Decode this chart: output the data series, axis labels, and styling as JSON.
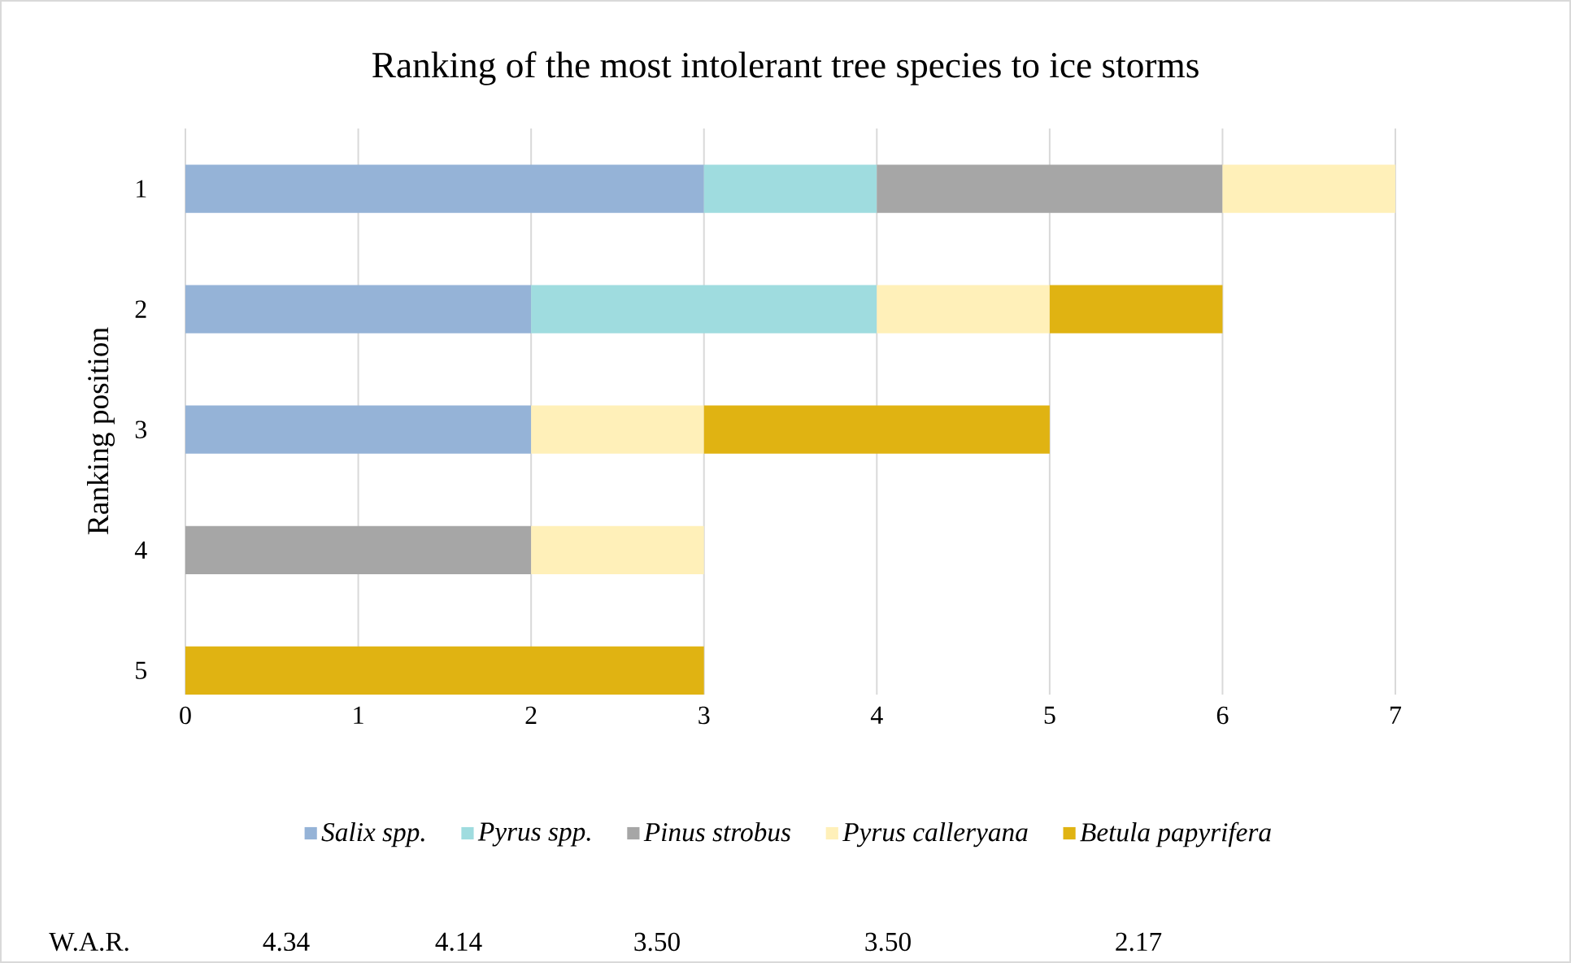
{
  "chart_data": {
    "type": "bar",
    "orientation": "horizontal",
    "stacked": true,
    "title": "Ranking of the most intolerant tree species to ice storms",
    "ylabel": "Ranking position",
    "categories": [
      "1",
      "2",
      "3",
      "4",
      "5"
    ],
    "series": [
      {
        "name": "Salix spp.",
        "color": "#95b3d7",
        "values": [
          3,
          2,
          2,
          null,
          null
        ]
      },
      {
        "name": "Pyrus spp.",
        "color": "#9fdcdf",
        "values": [
          1,
          2,
          null,
          null,
          null
        ]
      },
      {
        "name": "Pinus strobus",
        "color": "#a6a6a6",
        "values": [
          2,
          null,
          null,
          2,
          null
        ]
      },
      {
        "name": "Pyrus calleryana",
        "color": "#fff0b9",
        "values": [
          1,
          1,
          1,
          1,
          null
        ]
      },
      {
        "name": "Betula papyrifera",
        "color": "#e0b312",
        "values": [
          null,
          1,
          2,
          null,
          3
        ]
      }
    ],
    "xlim": [
      0,
      7
    ],
    "xticks": [
      0,
      1,
      2,
      3,
      4,
      5,
      6,
      7
    ],
    "grid": "x",
    "legend": "bottom",
    "annotations": [
      "W.A.R.",
      "4.34",
      "4.14",
      "3.50",
      "3.50",
      "2.17"
    ]
  }
}
